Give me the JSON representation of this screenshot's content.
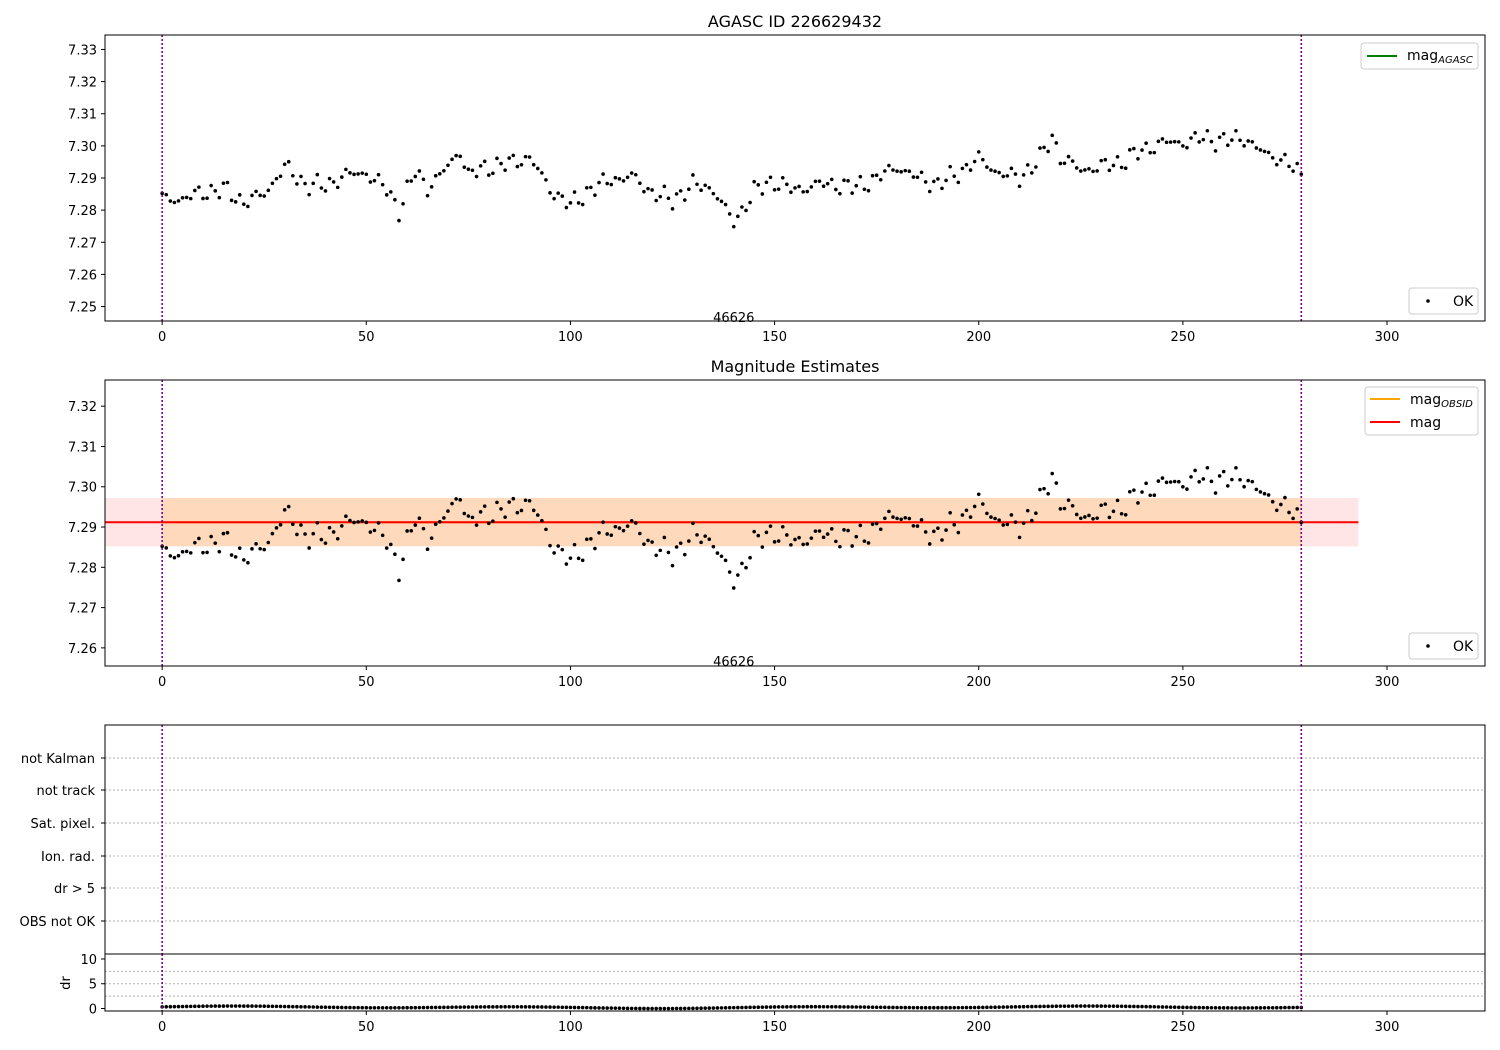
{
  "chart_data": [
    {
      "type": "scatter",
      "title": "AGASC ID 226629432",
      "xlim": [
        -14,
        324
      ],
      "ylim": [
        7.2455,
        7.3345
      ],
      "x_ticks": [
        0,
        50,
        100,
        150,
        200,
        250,
        300
      ],
      "x_tick_labels": [
        "0",
        "50",
        "100",
        "150",
        "200",
        "250",
        "300"
      ],
      "y_ticks": [
        7.25,
        7.26,
        7.27,
        7.28,
        7.29,
        7.3,
        7.31,
        7.32,
        7.33
      ],
      "y_tick_labels": [
        "7.25",
        "7.26",
        "7.27",
        "7.28",
        "7.29",
        "7.30",
        "7.31",
        "7.32",
        "7.33"
      ],
      "annotation": {
        "text": "46626",
        "x": 140,
        "y": 7.2465
      },
      "vlines": [
        0,
        279
      ],
      "legends": [
        {
          "position": "upper-right",
          "entries": [
            {
              "type": "line",
              "color": "#008000",
              "label": "mag",
              "subscript": "AGASC"
            }
          ]
        },
        {
          "position": "lower-right",
          "entries": [
            {
              "type": "marker",
              "color": "#000000",
              "label": "OK"
            }
          ]
        }
      ]
    },
    {
      "type": "scatter",
      "title": "Magnitude Estimates",
      "xlim": [
        -14,
        324
      ],
      "ylim": [
        7.2555,
        7.3265
      ],
      "x_ticks": [
        0,
        50,
        100,
        150,
        200,
        250,
        300
      ],
      "x_tick_labels": [
        "0",
        "50",
        "100",
        "150",
        "200",
        "250",
        "300"
      ],
      "y_ticks": [
        7.26,
        7.27,
        7.28,
        7.29,
        7.3,
        7.31,
        7.32
      ],
      "y_tick_labels": [
        "7.26",
        "7.27",
        "7.28",
        "7.29",
        "7.30",
        "7.31",
        "7.32"
      ],
      "mag_line": {
        "value": 7.2912,
        "x_range": [
          -14,
          293
        ],
        "color": "#ff0000"
      },
      "mag_band": {
        "low": 7.2852,
        "high": 7.2972,
        "x_range": [
          -14,
          293
        ]
      },
      "obsid_band": {
        "low": 7.2852,
        "high": 7.2972,
        "x_range": [
          0,
          279
        ]
      },
      "annotation": {
        "text": "46626",
        "x": 140,
        "y": 7.2565
      },
      "vlines": [
        0,
        279
      ],
      "legends": [
        {
          "position": "upper-right",
          "entries": [
            {
              "type": "line",
              "color": "#ffa500",
              "label": "mag",
              "subscript": "OBSID"
            },
            {
              "type": "line",
              "color": "#ff0000",
              "label": "mag"
            }
          ]
        },
        {
          "position": "lower-right",
          "entries": [
            {
              "type": "marker",
              "color": "#000000",
              "label": "OK"
            }
          ]
        }
      ]
    },
    {
      "type": "table",
      "categories": [
        "not Kalman",
        "not track",
        "Sat. pixel.",
        "Ion. rad.",
        "dr > 5",
        "OBS not OK"
      ],
      "xlim": [
        -14,
        324
      ],
      "vlines": [
        0,
        279
      ]
    },
    {
      "type": "scatter",
      "ylabel": "dr",
      "xlim": [
        -14,
        324
      ],
      "ylim": [
        -0.5,
        11
      ],
      "x_ticks": [
        0,
        50,
        100,
        150,
        200,
        250,
        300
      ],
      "x_tick_labels": [
        "0",
        "50",
        "100",
        "150",
        "200",
        "250",
        "300"
      ],
      "y_ticks": [
        0,
        5,
        10
      ],
      "y_tick_labels": [
        "0",
        "5",
        "10"
      ],
      "vlines": [
        0,
        279
      ]
    }
  ],
  "anchors": [
    [
      0,
      7.2835
    ],
    [
      5,
      7.2835
    ],
    [
      10,
      7.2855
    ],
    [
      15,
      7.2865
    ],
    [
      20,
      7.2825
    ],
    [
      25,
      7.285
    ],
    [
      30,
      7.2935
    ],
    [
      35,
      7.288
    ],
    [
      40,
      7.2875
    ],
    [
      45,
      7.291
    ],
    [
      50,
      7.2915
    ],
    [
      55,
      7.2865
    ],
    [
      58,
      7.28
    ],
    [
      62,
      7.292
    ],
    [
      65,
      7.287
    ],
    [
      70,
      7.2935
    ],
    [
      73,
      7.2985
    ],
    [
      75,
      7.291
    ],
    [
      80,
      7.2935
    ],
    [
      85,
      7.2945
    ],
    [
      90,
      7.2965
    ],
    [
      95,
      7.2865
    ],
    [
      100,
      7.2815
    ],
    [
      105,
      7.2865
    ],
    [
      110,
      7.2895
    ],
    [
      115,
      7.2905
    ],
    [
      120,
      7.2855
    ],
    [
      125,
      7.283
    ],
    [
      130,
      7.288
    ],
    [
      135,
      7.2865
    ],
    [
      140,
      7.276
    ],
    [
      145,
      7.286
    ],
    [
      150,
      7.289
    ],
    [
      155,
      7.286
    ],
    [
      160,
      7.288
    ],
    [
      165,
      7.288
    ],
    [
      170,
      7.287
    ],
    [
      175,
      7.29
    ],
    [
      180,
      7.2935
    ],
    [
      185,
      7.29
    ],
    [
      190,
      7.288
    ],
    [
      195,
      7.2915
    ],
    [
      200,
      7.296
    ],
    [
      205,
      7.2915
    ],
    [
      210,
      7.29
    ],
    [
      215,
      7.296
    ],
    [
      218,
      7.303
    ],
    [
      220,
      7.2965
    ],
    [
      225,
      7.2925
    ],
    [
      230,
      7.2935
    ],
    [
      235,
      7.295
    ],
    [
      240,
      7.2985
    ],
    [
      245,
      7.301
    ],
    [
      250,
      7.301
    ],
    [
      255,
      7.3025
    ],
    [
      260,
      7.3015
    ],
    [
      265,
      7.3025
    ],
    [
      270,
      7.2975
    ],
    [
      275,
      7.2955
    ],
    [
      279,
      7.2905
    ]
  ]
}
